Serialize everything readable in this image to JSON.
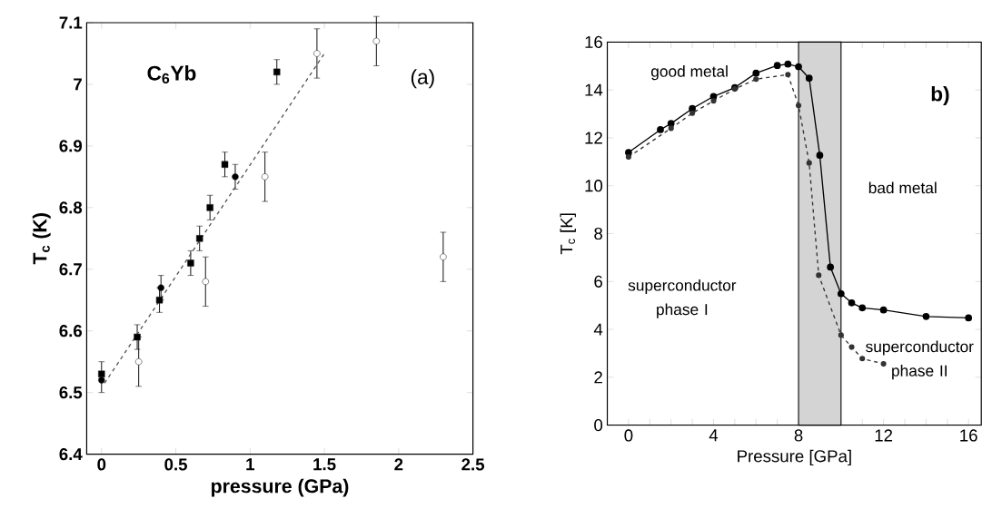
{
  "chart_data": [
    {
      "type": "scatter",
      "xlabel": "pressure (GPa)",
      "ylabel": "T$_{c}$ (K)",
      "annotations": [
        "C$_{6}$Yb",
        "(a)"
      ],
      "xlim": [
        -0.1,
        2.5
      ],
      "ylim": [
        6.4,
        7.1
      ],
      "xticks": [
        0,
        0.5,
        1,
        1.5,
        2,
        2.5
      ],
      "yticks": [
        6.4,
        6.5,
        6.6,
        6.7,
        6.8,
        6.9,
        7,
        7.1
      ],
      "grid": false,
      "series": [
        {
          "color": "#000000",
          "marker": "square",
          "x": [
            0,
            0.24,
            0.39,
            0.6,
            0.66,
            0.73,
            0.83,
            1.18
          ],
          "values": [
            6.53,
            6.59,
            6.65,
            6.71,
            6.75,
            6.8,
            6.87,
            7.02
          ],
          "errors": [
            [
              6.5,
              6.55
            ],
            0.02,
            0.02,
            0.02,
            0.02,
            0.02,
            0.02,
            0.02
          ]
        },
        {
          "color": "#000000",
          "marker": "circle",
          "x": [
            0,
            0.4,
            0.9
          ],
          "values": [
            6.52,
            6.67,
            6.85
          ],
          "errors": [
            null,
            0.02,
            0.02
          ]
        },
        {
          "color": "#ffffff",
          "marker": "circle",
          "x": [
            0.25,
            0.7,
            1.1,
            1.45,
            1.85,
            2.3
          ],
          "values": [
            6.55,
            6.68,
            6.85,
            7.05,
            7.07,
            6.72
          ],
          "errors": [
            0.04,
            0.04,
            0.04,
            0.04,
            0.04,
            0.04
          ]
        },
        {
          "type": "line",
          "color": "#555555",
          "marker": "none",
          "line_style": "dashed",
          "x": [
            0.02,
            1.5
          ],
          "values": [
            6.515,
            7.05
          ]
        }
      ]
    },
    {
      "type": "line",
      "xlabel": "Pressure [GPa]",
      "ylabel": "T$_{c}$ [K]",
      "annotations": [
        "good metal",
        "b)",
        "bad metal",
        "superconductor phase I",
        "superconductor phase II"
      ],
      "xlim": [
        -1,
        16.6
      ],
      "ylim": [
        0,
        16
      ],
      "xticks": [
        0,
        {
          "value": 1,
          "label": null
        },
        {
          "value": 2,
          "label": null
        },
        {
          "value": 3,
          "label": null
        },
        4,
        {
          "value": 5,
          "label": null
        },
        {
          "value": 6,
          "label": null
        },
        {
          "value": 7,
          "label": null
        },
        8,
        {
          "value": 9,
          "label": null
        },
        {
          "value": 10,
          "label": null
        },
        {
          "value": 11,
          "label": null
        },
        12,
        {
          "value": 13,
          "label": null
        },
        {
          "value": 14,
          "label": null
        },
        {
          "value": 15,
          "label": null
        },
        16
      ],
      "yticks": [
        0,
        2,
        4,
        6,
        8,
        10,
        12,
        14,
        16
      ],
      "grid": false,
      "marker": "circle",
      "bands": [
        {
          "axis": "x",
          "from": 8,
          "to": 10,
          "color": "#d4d4d4"
        }
      ],
      "series": [
        {
          "color": "#000000",
          "line_style": "solid",
          "x": [
            0,
            1.5,
            2,
            3,
            4,
            5,
            6,
            7,
            7.5,
            8,
            8.5,
            9,
            9.5,
            10,
            10.5,
            11,
            12,
            14,
            16
          ],
          "values": [
            11.39,
            12.34,
            12.6,
            13.22,
            13.73,
            14.1,
            14.7,
            15.02,
            15.08,
            14.97,
            14.49,
            11.27,
            6.6,
            5.49,
            5.11,
            4.9,
            4.81,
            4.54,
            4.48
          ]
        },
        {
          "color": "#333333",
          "line_style": "dashed",
          "x": [
            0,
            2,
            3,
            4,
            5,
            6,
            7.5,
            8,
            8.5,
            8.95,
            10,
            10.5,
            11,
            12
          ],
          "values": [
            11.2,
            12.4,
            13.03,
            13.54,
            14.04,
            14.45,
            14.64,
            13.35,
            10.95,
            6.26,
            3.76,
            3.26,
            2.78,
            2.56
          ]
        }
      ]
    }
  ]
}
